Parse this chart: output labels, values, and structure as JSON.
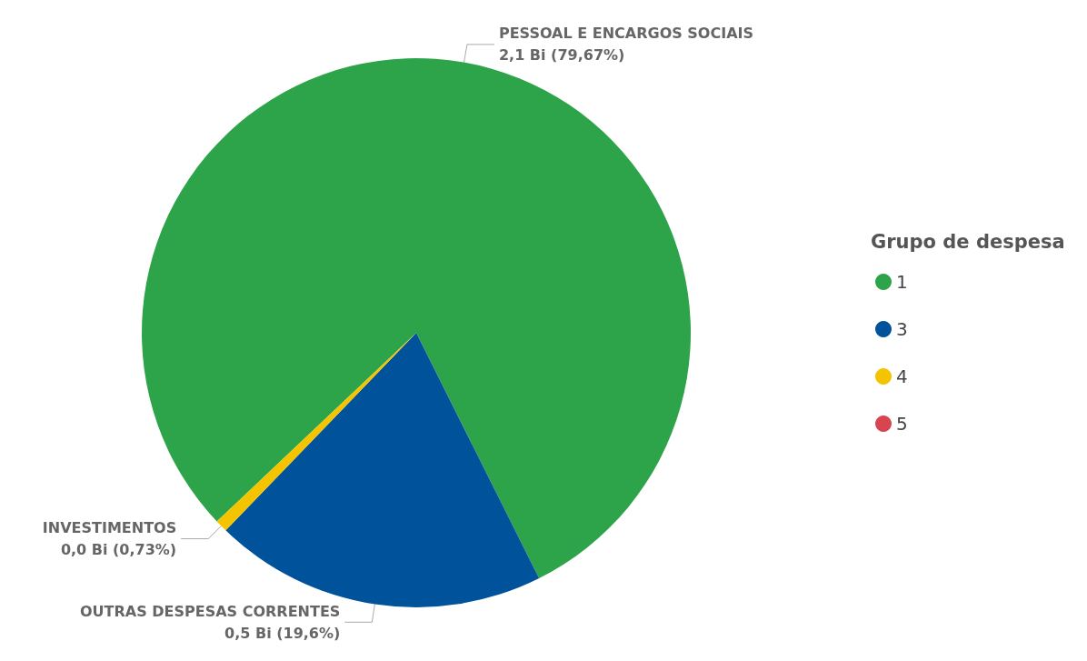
{
  "chart_data": {
    "type": "pie",
    "legend_title": "Grupo de despesa",
    "categories": [
      "1",
      "3",
      "4",
      "5"
    ],
    "values": [
      79.67,
      19.6,
      0.73,
      0
    ],
    "colors": [
      "#2ea44a",
      "#00539b",
      "#f5c400",
      "#d64550"
    ],
    "value_labels": [
      "PESSOAL E ENCARGOS SOCIAIS\n2,1 Bi (79,67%)",
      "OUTRAS DESPESAS CORRENTES\n0,5 Bi (19,6%)",
      "INVESTIMENTOS\n0,0 Bi (0,73%)",
      null
    ],
    "legend": "right"
  }
}
